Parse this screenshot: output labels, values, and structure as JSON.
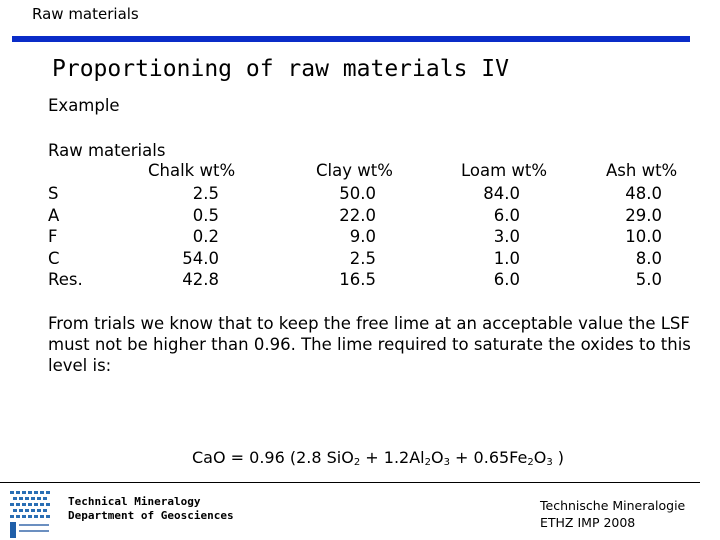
{
  "header": {
    "label": "Raw materials"
  },
  "slide": {
    "title": "Proportioning of raw materials IV",
    "example_label": "Example",
    "raw_materials_label": "Raw materials"
  },
  "table": {
    "row_labels": [
      "S",
      "A",
      "F",
      "C",
      "Res."
    ],
    "columns": [
      {
        "header": "Chalk wt%",
        "values": [
          "2.5",
          "0.5",
          "0.2",
          "54.0",
          "42.8"
        ]
      },
      {
        "header": "Clay wt%",
        "values": [
          "50.0",
          "22.0",
          "9.0",
          "2.5",
          "16.5"
        ]
      },
      {
        "header": "Loam wt%",
        "values": [
          "84.0",
          "6.0",
          "3.0",
          "1.0",
          "6.0"
        ]
      },
      {
        "header": "Ash wt%",
        "values": [
          "48.0",
          "29.0",
          "10.0",
          "8.0",
          "5.0"
        ]
      }
    ]
  },
  "paragraph": "From trials we know that to keep the free lime at an acceptable value the LSF must not be higher than 0.96. The lime required to saturate the oxides to this level is:",
  "formula": {
    "lhs": "CaO = 0.96 (2.8 SiO",
    "sub1": "2",
    "mid1": " + 1.2Al",
    "sub2": "2",
    "mid2": "O",
    "sub3": "3",
    "mid3": " +  0.65Fe",
    "sub4": "2",
    "mid4": "O",
    "sub5": "3",
    "end": " )"
  },
  "footer": {
    "left_line1": "Technical Mineralogy",
    "left_line2": "Department of Geosciences",
    "right_line1": "Technische Mineralogie",
    "right_line2": "ETHZ IMP 2008"
  },
  "colors": {
    "accent_bar": "#0a2cc8"
  }
}
